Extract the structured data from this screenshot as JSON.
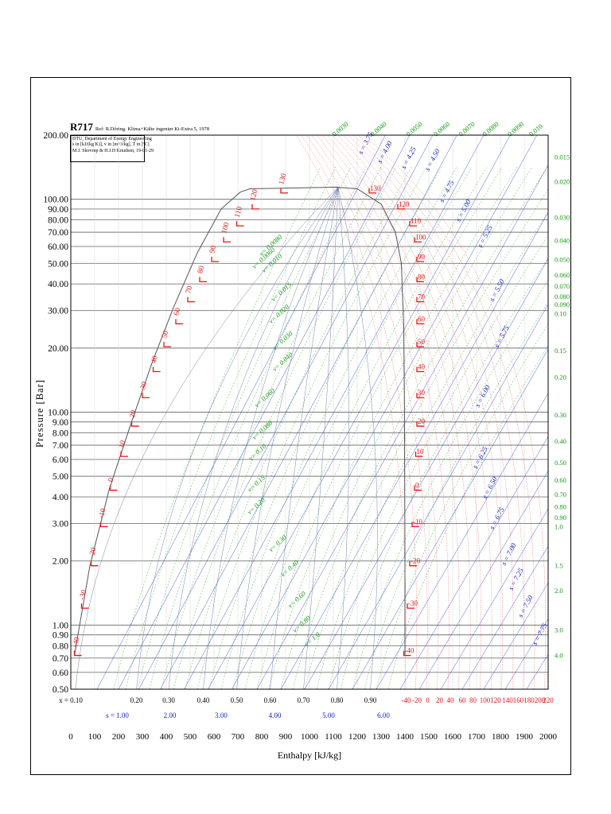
{
  "title": "R717",
  "reference": "Ref: R.Döring. Klima+Kälte ingeniør Ki-Extra 5, 1978",
  "info_lines": [
    "DTU, Department of Energy Engineering",
    "s in [kJ/(kg K)], v in [m^3/kg], T in [ºC]",
    "M.J. Skovrup & H.J.H Knudsen, 19-01-29"
  ],
  "colors": {
    "grid": "#777777",
    "dome": "#555555",
    "temperature": "#ee1111",
    "volume": "#119911",
    "entropy": "#1122cc",
    "text": "#000000"
  },
  "chart_data": {
    "type": "line",
    "xlabel": "Enthalpy [kJ/kg]",
    "ylabel": "Pressure [Bar]",
    "xlim": [
      0,
      2000
    ],
    "ylim": [
      0.5,
      200
    ],
    "y_scale": "log",
    "grid": true,
    "x_ticks": [
      "0",
      "100",
      "200",
      "300",
      "400",
      "500",
      "600",
      "700",
      "800",
      "900",
      "1000",
      "1100",
      "1200",
      "1300",
      "1400",
      "1500",
      "1600",
      "1700",
      "1800",
      "1900",
      "2000"
    ],
    "y_ticks": [
      "200.00",
      "100.00",
      "90.00",
      "80.00",
      "70.00",
      "60.00",
      "50.00",
      "40.00",
      "30.00",
      "20.00",
      "10.00",
      "9.00",
      "8.00",
      "7.00",
      "6.00",
      "5.00",
      "4.00",
      "3.00",
      "2.00",
      "1.00",
      "0.90",
      "0.80",
      "0.70",
      "0.60",
      "0.50"
    ],
    "y_tick_values": [
      200,
      100,
      90,
      80,
      70,
      60,
      50,
      40,
      30,
      20,
      10,
      9,
      8,
      7,
      6,
      5,
      4,
      3,
      2,
      1,
      0.9,
      0.8,
      0.7,
      0.6,
      0.5
    ],
    "quality_axis_prefix": "x = ",
    "quality_labels": [
      "0.10",
      "0.20",
      "0.30",
      "0.40",
      "0.50",
      "0.60",
      "0.70",
      "0.80",
      "0.90"
    ],
    "quality_h": [
      20,
      275,
      410,
      555,
      695,
      835,
      975,
      1115,
      1255
    ],
    "entropy_axis_prefix": "s = ",
    "entropy_axis_labels": [
      "1.00",
      "2.00",
      "3.00",
      "4.00",
      "5.00",
      "6.00"
    ],
    "entropy_axis_h": [
      195,
      415,
      630,
      855,
      1080,
      1310
    ],
    "temperature_axis_labels": [
      "-40",
      "-20",
      "0",
      "20",
      "40",
      "60",
      "80",
      "100",
      "120",
      "140",
      "160",
      "180",
      "200",
      "220"
    ],
    "temperature_axis_h": [
      1405,
      1450,
      1495,
      1545,
      1590,
      1640,
      1685,
      1735,
      1780,
      1830,
      1875,
      1920,
      1965,
      2000
    ],
    "saturation_liquid": [
      [
        15,
        0.72
      ],
      [
        80,
        1.9
      ],
      [
        160,
        4.3
      ],
      [
        250,
        8.7
      ],
      [
        340,
        17
      ],
      [
        430,
        31
      ],
      [
        530,
        56
      ],
      [
        630,
        90
      ],
      [
        710,
        108
      ],
      [
        750,
        112
      ]
    ],
    "saturation_vapor": [
      [
        1105,
        114
      ],
      [
        1200,
        112
      ],
      [
        1300,
        95
      ],
      [
        1360,
        70
      ],
      [
        1385,
        50
      ],
      [
        1395,
        25
      ],
      [
        1398,
        10
      ],
      [
        1400,
        2
      ],
      [
        1400,
        0.72
      ]
    ],
    "critical_point": [
      1120,
      114
    ],
    "isotherms_liquid": [
      {
        "label": "-40",
        "h": 15,
        "p": 0.72
      },
      {
        "label": "-30",
        "h": 45,
        "p": 1.2
      },
      {
        "label": "-20",
        "h": 85,
        "p": 1.9
      },
      {
        "label": "-10",
        "h": 125,
        "p": 2.9
      },
      {
        "label": "0",
        "h": 165,
        "p": 4.3
      },
      {
        "label": "10",
        "h": 210,
        "p": 6.2
      },
      {
        "label": "20",
        "h": 255,
        "p": 8.6
      },
      {
        "label": "30",
        "h": 300,
        "p": 11.7
      },
      {
        "label": "40",
        "h": 345,
        "p": 15.5
      },
      {
        "label": "50",
        "h": 390,
        "p": 20.3
      },
      {
        "label": "60",
        "h": 440,
        "p": 26
      },
      {
        "label": "70",
        "h": 490,
        "p": 33
      },
      {
        "label": "80",
        "h": 540,
        "p": 41
      },
      {
        "label": "90",
        "h": 590,
        "p": 51
      },
      {
        "label": "100",
        "h": 640,
        "p": 63
      },
      {
        "label": "110",
        "h": 695,
        "p": 75
      },
      {
        "label": "120",
        "h": 760,
        "p": 90
      },
      {
        "label": "130",
        "h": 880,
        "p": 107
      }
    ],
    "isotherms_vapor": [
      {
        "label": "-40",
        "h": 1395,
        "p": 0.72
      },
      {
        "label": "-30",
        "h": 1410,
        "p": 1.2
      },
      {
        "label": "-20",
        "h": 1420,
        "p": 1.9
      },
      {
        "label": "-10",
        "h": 1430,
        "p": 2.9
      },
      {
        "label": "0",
        "h": 1440,
        "p": 4.3
      },
      {
        "label": "10",
        "h": 1445,
        "p": 6.2
      },
      {
        "label": "20",
        "h": 1450,
        "p": 8.6
      },
      {
        "label": "30",
        "h": 1450,
        "p": 11.7
      },
      {
        "label": "40",
        "h": 1450,
        "p": 15.5
      },
      {
        "label": "50",
        "h": 1450,
        "p": 20.3
      },
      {
        "label": "60",
        "h": 1450,
        "p": 26
      },
      {
        "label": "70",
        "h": 1450,
        "p": 33
      },
      {
        "label": "80",
        "h": 1450,
        "p": 41
      },
      {
        "label": "90",
        "h": 1450,
        "p": 51
      },
      {
        "label": "100",
        "h": 1440,
        "p": 63
      },
      {
        "label": "110",
        "h": 1420,
        "p": 75
      },
      {
        "label": "120",
        "h": 1370,
        "p": 90
      },
      {
        "label": "130",
        "h": 1250,
        "p": 107
      }
    ],
    "volume_labels_right": [
      {
        "label": "0.015",
        "p": 158
      },
      {
        "label": "0.020",
        "p": 121
      },
      {
        "label": "0.030",
        "p": 82
      },
      {
        "label": "0.040",
        "p": 64
      },
      {
        "label": "0.050",
        "p": 52
      },
      {
        "label": "0.060",
        "p": 44
      },
      {
        "label": "0.070",
        "p": 39
      },
      {
        "label": "0.080",
        "p": 35
      },
      {
        "label": "0.090",
        "p": 32
      },
      {
        "label": "0.10",
        "p": 29
      },
      {
        "label": "0.15",
        "p": 19.5
      },
      {
        "label": "0.20",
        "p": 14.6
      },
      {
        "label": "0.30",
        "p": 9.7
      },
      {
        "label": "0.40",
        "p": 7.3
      },
      {
        "label": "0.50",
        "p": 5.8
      },
      {
        "label": "0.60",
        "p": 4.8
      },
      {
        "label": "0.70",
        "p": 4.1
      },
      {
        "label": "0.80",
        "p": 3.6
      },
      {
        "label": "0.90",
        "p": 3.2
      },
      {
        "label": "1.0",
        "p": 2.9
      },
      {
        "label": "1.5",
        "p": 1.9
      },
      {
        "label": "2.0",
        "p": 1.45
      },
      {
        "label": "3.0",
        "p": 0.95
      },
      {
        "label": "4.0",
        "p": 0.72
      }
    ],
    "volume_labels_top": [
      {
        "label": "0.0030",
        "h": 1105
      },
      {
        "label": "0.0040",
        "h": 1265
      },
      {
        "label": "0.0050",
        "h": 1415
      },
      {
        "label": "0.0060",
        "h": 1530
      },
      {
        "label": "0.0070",
        "h": 1635
      },
      {
        "label": "0.0080",
        "h": 1735
      },
      {
        "label": "0.0090",
        "h": 1840
      },
      {
        "label": "0.010",
        "h": 1930
      }
    ],
    "volume_labels_dome": [
      {
        "label": "0.0060",
        "h": 770,
        "p": 47
      },
      {
        "label": "0.0080",
        "h": 800,
        "p": 54
      },
      {
        "label": "0.010",
        "h": 810,
        "p": 45
      },
      {
        "label": "0.015",
        "h": 850,
        "p": 33
      },
      {
        "label": "0.020",
        "h": 840,
        "p": 26
      },
      {
        "label": "0.030",
        "h": 855,
        "p": 19.5
      },
      {
        "label": "0.040",
        "h": 855,
        "p": 15.5
      },
      {
        "label": "0.060",
        "h": 780,
        "p": 10.5
      },
      {
        "label": "0.080",
        "h": 770,
        "p": 7.4
      },
      {
        "label": "0.10",
        "h": 755,
        "p": 5.9
      },
      {
        "label": "0.15",
        "h": 750,
        "p": 4.2
      },
      {
        "label": "0.20",
        "h": 750,
        "p": 3.3
      },
      {
        "label": "0.30",
        "h": 840,
        "p": 2.2
      },
      {
        "label": "0.40",
        "h": 890,
        "p": 1.68
      },
      {
        "label": "0.60",
        "h": 920,
        "p": 1.2
      },
      {
        "label": "0.80",
        "h": 940,
        "p": 0.92
      },
      {
        "label": "1.0",
        "h": 990,
        "p": 0.79
      }
    ],
    "entropy_labels": [
      {
        "label": "3.75",
        "h": 1220,
        "p": 162
      },
      {
        "label": "4.00",
        "h": 1300,
        "p": 147
      },
      {
        "label": "4.25",
        "h": 1400,
        "p": 138
      },
      {
        "label": "4.50",
        "h": 1500,
        "p": 135
      },
      {
        "label": "4.75",
        "h": 1560,
        "p": 96
      },
      {
        "label": "5.00",
        "h": 1630,
        "p": 78
      },
      {
        "label": "5.25",
        "h": 1720,
        "p": 59
      },
      {
        "label": "5.50",
        "h": 1770,
        "p": 33
      },
      {
        "label": "5.75",
        "h": 1790,
        "p": 20
      },
      {
        "label": "6.00",
        "h": 1710,
        "p": 10.5
      },
      {
        "label": "6.25",
        "h": 1700,
        "p": 5.4
      },
      {
        "label": "6.50",
        "h": 1740,
        "p": 3.9
      },
      {
        "label": "6.75",
        "h": 1770,
        "p": 2.8
      },
      {
        "label": "7.00",
        "h": 1820,
        "p": 1.9
      },
      {
        "label": "7.25",
        "h": 1850,
        "p": 1.45
      },
      {
        "label": "7.50",
        "h": 1890,
        "p": 1.08
      },
      {
        "label": "7.75",
        "h": 1950,
        "p": 0.8
      }
    ],
    "entropy_line_h": [
      110,
      200,
      285,
      375,
      475,
      575,
      675,
      780,
      880,
      980,
      1080,
      1180,
      1280,
      1380,
      1460,
      1550,
      1640,
      1730,
      1820,
      1910,
      2000
    ],
    "volume_line_h": [
      180,
      230,
      280,
      330,
      380,
      430,
      480,
      530,
      580,
      630,
      680,
      730,
      780,
      830,
      880,
      930,
      980,
      1030,
      1080,
      1130,
      1180,
      1230,
      1280,
      1330
    ]
  }
}
